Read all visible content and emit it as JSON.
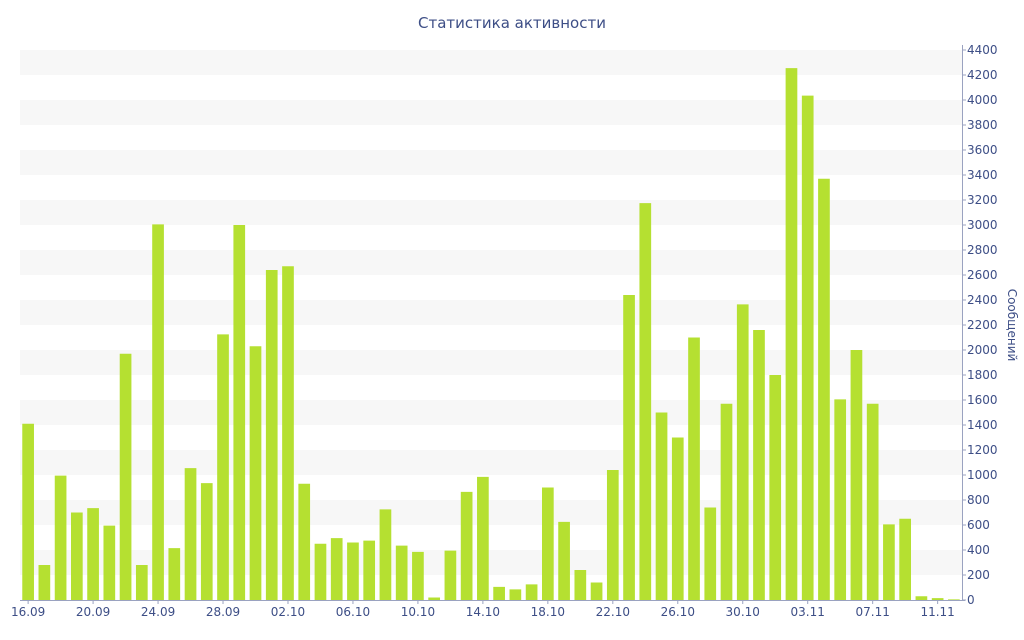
{
  "chart_data": {
    "type": "bar",
    "title": "Статистика активности",
    "ylabel": "Сообщений",
    "xlabel": "",
    "ylim": [
      0,
      4400
    ],
    "y_tick_step": 200,
    "y_axis_position": "right",
    "grid": "alternating horizontal bands",
    "legend": "none",
    "colors": {
      "bar": "#b5e031",
      "text": "#3d4e86",
      "band": "#f7f7f7",
      "axis": "#9aa2c0"
    },
    "categories": [
      "16.09",
      "17.09",
      "18.09",
      "19.09",
      "20.09",
      "21.09",
      "22.09",
      "23.09",
      "24.09",
      "25.09",
      "26.09",
      "27.09",
      "28.09",
      "29.09",
      "30.09",
      "01.10",
      "02.10",
      "03.10",
      "04.10",
      "05.10",
      "06.10",
      "07.10",
      "08.10",
      "09.10",
      "10.10",
      "11.10",
      "12.10",
      "13.10",
      "14.10",
      "15.10",
      "16.10",
      "17.10",
      "18.10",
      "19.10",
      "20.10",
      "21.10",
      "22.10",
      "23.10",
      "24.10",
      "25.10",
      "26.10",
      "27.10",
      "28.10",
      "29.10",
      "30.10",
      "31.10",
      "01.11",
      "02.11",
      "03.11",
      "04.11",
      "05.11",
      "06.11",
      "07.11",
      "08.11",
      "09.11",
      "10.11",
      "11.11",
      "12.11"
    ],
    "x_tick_labels": [
      "16.09",
      "20.09",
      "24.09",
      "28.09",
      "02.10",
      "06.10",
      "10.10",
      "14.10",
      "18.10",
      "22.10",
      "26.10",
      "30.10",
      "03.11",
      "07.11",
      "11.11"
    ],
    "values": [
      1410,
      280,
      995,
      700,
      735,
      595,
      1970,
      280,
      3005,
      415,
      1055,
      935,
      2125,
      3000,
      2030,
      2640,
      2670,
      930,
      450,
      495,
      460,
      475,
      725,
      435,
      385,
      20,
      395,
      865,
      985,
      105,
      85,
      125,
      900,
      625,
      240,
      140,
      1040,
      2440,
      3175,
      1500,
      1300,
      2100,
      740,
      1570,
      2365,
      2160,
      1800,
      4255,
      4035,
      3370,
      1605,
      2000,
      1570,
      605,
      650,
      30,
      15,
      5
    ]
  }
}
